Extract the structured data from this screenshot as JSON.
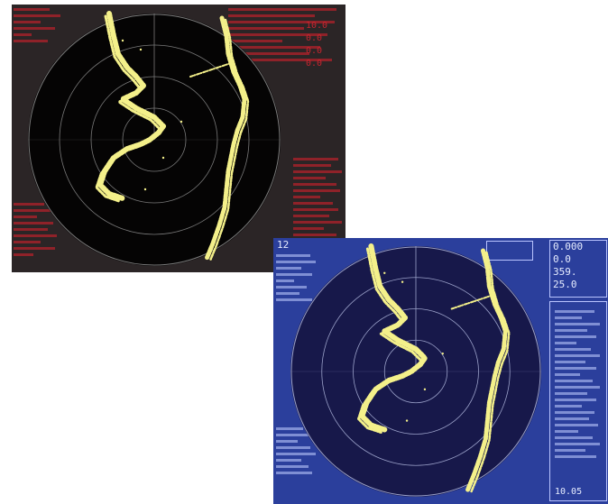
{
  "colors": {
    "night_background": "#2b2526",
    "night_text": "#c8252f",
    "day_background": "#2b3f9c",
    "day_text": "#e6ecff",
    "scope_night": "#050404",
    "scope_day": "#17184a",
    "echo": "#f4f08a"
  },
  "night_screen": {
    "readouts": [
      "10.0",
      "0.0",
      "0.0",
      "0.0"
    ]
  },
  "day_screen": {
    "top_left": "12",
    "top_right": [
      "0.000",
      "0.0",
      "359.",
      "25.0"
    ],
    "bottom_right": "10.05"
  }
}
